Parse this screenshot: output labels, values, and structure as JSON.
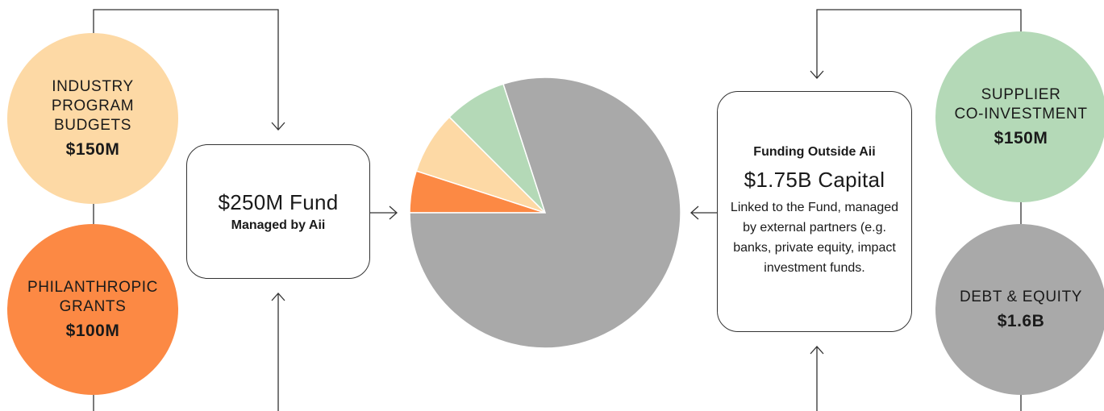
{
  "sources_left": [
    {
      "label": "INDUSTRY\nPROGRAM\nBUDGETS",
      "amount": "$150M",
      "color": "#FDD9A5"
    },
    {
      "label": "PHILANTHROPIC\nGRANTS",
      "amount": "$100M",
      "color": "#FC8944"
    }
  ],
  "sources_right": [
    {
      "label": "SUPPLIER\nCO-INVESTMENT",
      "amount": "$150M",
      "color": "#B4D9B7"
    },
    {
      "label": "DEBT & EQUITY",
      "amount": "$1.6B",
      "color": "#A9A9A9"
    }
  ],
  "fund_box": {
    "title": "$250M Fund",
    "subtitle": "Managed by Aii"
  },
  "outside_box": {
    "heading": "Funding Outside Aii",
    "capital": "$1.75B Capital",
    "description": "Linked to the Fund, managed by external partners (e.g. banks, private equity, impact investment funds."
  },
  "chart_data": {
    "type": "pie",
    "slices": [
      {
        "value": 100,
        "color": "#FC8944"
      },
      {
        "value": 150,
        "color": "#FDD9A5"
      },
      {
        "value": 150,
        "color": "#B4D9B7"
      },
      {
        "value": 1600,
        "color": "#A9A9A9"
      }
    ]
  }
}
